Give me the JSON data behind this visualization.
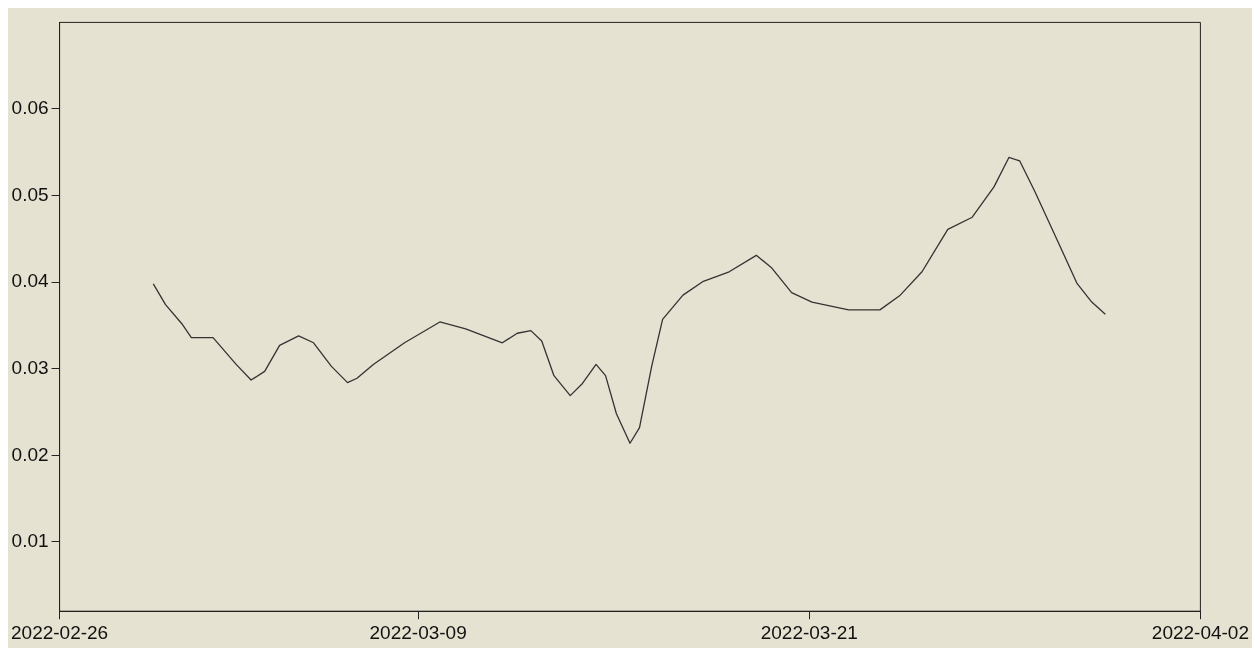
{
  "chart_data": {
    "type": "line",
    "color": "#333333",
    "x": [
      "2022-02-28T21:00",
      "2022-03-01T06:00",
      "2022-03-01T18:00",
      "2022-03-02T01:00",
      "2022-03-02T17:00",
      "2022-03-03T10:00",
      "2022-03-03T21:00",
      "2022-03-04T07:00",
      "2022-03-04T18:00",
      "2022-03-05T08:00",
      "2022-03-05T19:00",
      "2022-03-06T08:00",
      "2022-03-06T20:00",
      "2022-03-07T03:00",
      "2022-03-07T15:00",
      "2022-03-08T14:00",
      "2022-03-09T16:00",
      "2022-03-10T11:00",
      "2022-03-11T14:00",
      "2022-03-12T01:00",
      "2022-03-12T11:00",
      "2022-03-12T19:00",
      "2022-03-13T04:00",
      "2022-03-13T16:00",
      "2022-03-14T01:00",
      "2022-03-14T11:00",
      "2022-03-14T18:00",
      "2022-03-15T02:00",
      "2022-03-15T12:00",
      "2022-03-15T19:00",
      "2022-03-16T04:00",
      "2022-03-16T12:00",
      "2022-03-17T03:00",
      "2022-03-17T18:00",
      "2022-03-18T13:00",
      "2022-03-19T09:00",
      "2022-03-19T20:00",
      "2022-03-20T11:00",
      "2022-03-21T02:00",
      "2022-03-22T05:00",
      "2022-03-23T04:00",
      "2022-03-23T19:00",
      "2022-03-24T11:00",
      "2022-03-25T06:00",
      "2022-03-26T00:00",
      "2022-03-26T16:00",
      "2022-03-27T03:00",
      "2022-03-27T11:00",
      "2022-03-27T22:00",
      "2022-03-28T13:00",
      "2022-03-29T05:00",
      "2022-03-29T16:00",
      "2022-03-30T02:00"
    ],
    "values": [
      0.0398,
      0.0374,
      0.0352,
      0.0336,
      0.0336,
      0.0305,
      0.0287,
      0.0297,
      0.0327,
      0.0338,
      0.033,
      0.0303,
      0.0284,
      0.0289,
      0.0305,
      0.033,
      0.0354,
      0.0346,
      0.033,
      0.0341,
      0.0344,
      0.0332,
      0.0292,
      0.0269,
      0.0283,
      0.0305,
      0.0292,
      0.0248,
      0.0214,
      0.0232,
      0.0303,
      0.0357,
      0.0385,
      0.0401,
      0.0412,
      0.0431,
      0.0417,
      0.0388,
      0.0377,
      0.0368,
      0.0368,
      0.0385,
      0.0412,
      0.0461,
      0.0475,
      0.051,
      0.0544,
      0.054,
      0.0505,
      0.0454,
      0.0399,
      0.0377,
      0.0363
    ],
    "xlim": [
      "2022-02-26",
      "2022-04-02"
    ],
    "xticks": [
      "2022-02-26",
      "2022-03-09",
      "2022-03-21",
      "2022-04-02"
    ],
    "ylim": [
      0.002,
      0.07
    ],
    "yticks": [
      0.01,
      0.02,
      0.03,
      0.04,
      0.05,
      0.06
    ],
    "grid": false,
    "legend": false,
    "marker": "none",
    "line_style": "solid"
  }
}
